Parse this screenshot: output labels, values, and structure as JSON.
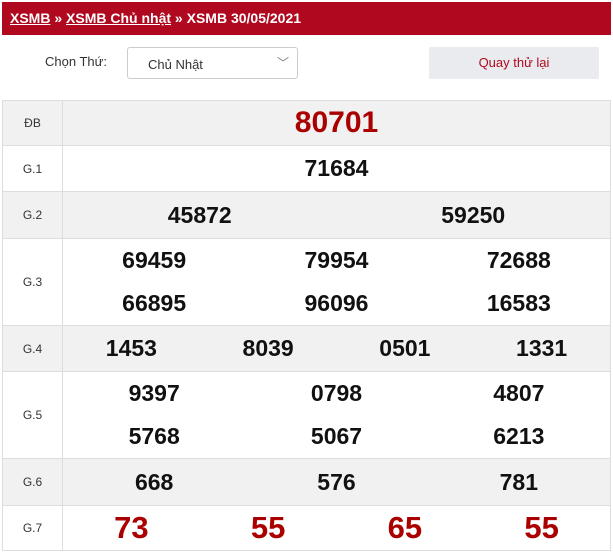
{
  "breadcrumb": {
    "items": [
      "XSMB",
      "XSMB Chủ nhật"
    ],
    "current": "XSMB 30/05/2021",
    "separator": "»"
  },
  "filter": {
    "label": "Chọn Thứ:",
    "selected": "Chủ Nhật",
    "button": "Quay thử lại"
  },
  "results": [
    {
      "label": "ĐB",
      "numbers": [
        "80701"
      ],
      "cols": 1
    },
    {
      "label": "G.1",
      "numbers": [
        "71684"
      ],
      "cols": 1
    },
    {
      "label": "G.2",
      "numbers": [
        "45872",
        "59250"
      ],
      "cols": 2
    },
    {
      "label": "G.3",
      "numbers": [
        "69459",
        "79954",
        "72688",
        "66895",
        "96096",
        "16583"
      ],
      "cols": 3
    },
    {
      "label": "G.4",
      "numbers": [
        "1453",
        "8039",
        "0501",
        "1331"
      ],
      "cols": 4
    },
    {
      "label": "G.5",
      "numbers": [
        "9397",
        "0798",
        "4807",
        "5768",
        "5067",
        "6213"
      ],
      "cols": 3
    },
    {
      "label": "G.6",
      "numbers": [
        "668",
        "576",
        "781"
      ],
      "cols": 3
    },
    {
      "label": "G.7",
      "numbers": [
        "73",
        "55",
        "65",
        "55"
      ],
      "cols": 4
    }
  ],
  "colors": {
    "brand": "#b0081f",
    "highlight": "#aa0000"
  }
}
